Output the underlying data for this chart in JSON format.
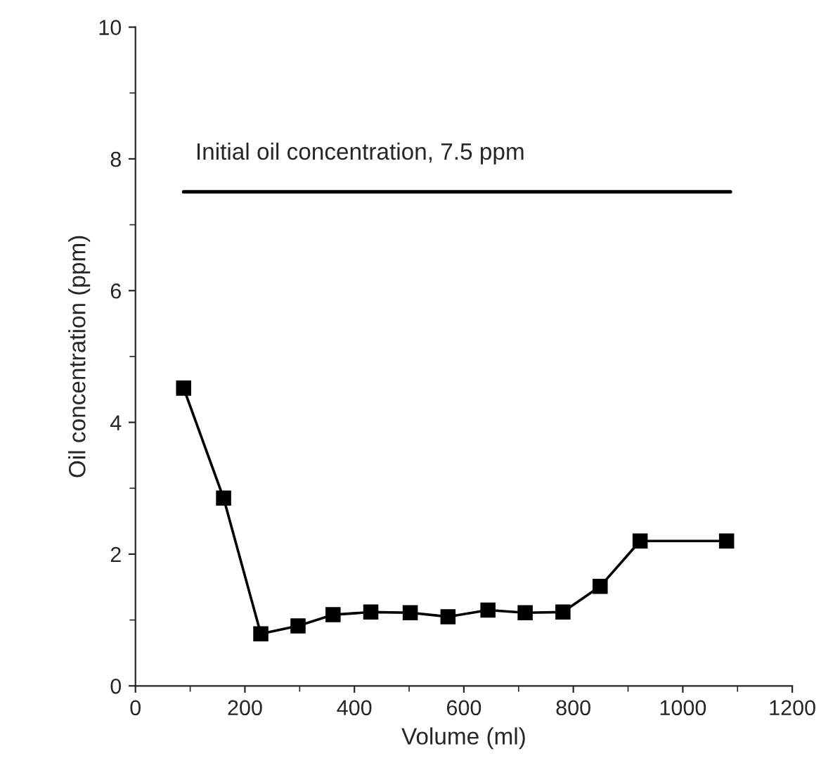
{
  "chart_data": {
    "type": "line",
    "xlabel": "Volume (ml)",
    "ylabel": "Oil concentration (ppm)",
    "series": [
      {
        "color": "#000000",
        "marker": "square",
        "x": [
          88,
          161,
          229,
          297,
          361,
          430,
          502,
          571,
          644,
          712,
          781,
          849,
          922,
          1080
        ],
        "values": [
          4.52,
          2.85,
          0.79,
          0.91,
          1.08,
          1.12,
          1.11,
          1.05,
          1.15,
          1.11,
          1.12,
          1.51,
          2.2,
          2.2
        ]
      },
      {
        "color": "#000000",
        "marker": "none",
        "x": [
          88,
          1087
        ],
        "values": [
          7.5,
          7.5
        ]
      }
    ],
    "annotations": [
      {
        "text": "Initial oil concentration, 7.5 ppm",
        "x": 88,
        "y": 7.5
      }
    ],
    "xlim": [
      0,
      1200
    ],
    "xticks": [
      0,
      200,
      400,
      600,
      800,
      1000,
      1200
    ],
    "ylim": [
      0,
      10
    ],
    "yticks": [
      0,
      2,
      4,
      6,
      8,
      10
    ],
    "grid": false,
    "legend": false
  }
}
